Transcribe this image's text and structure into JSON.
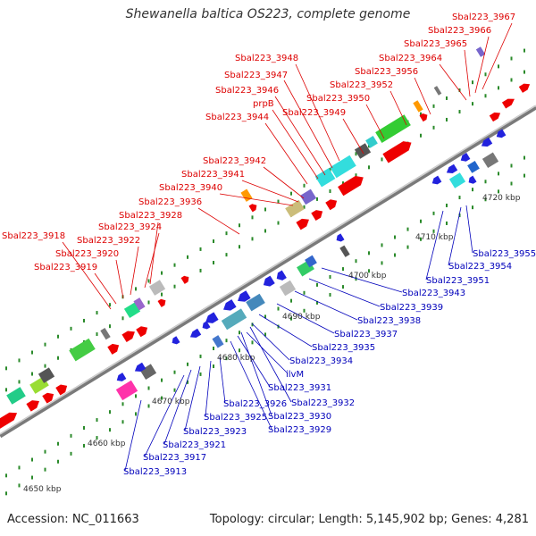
{
  "title": "Shewanella baltica OS223, complete genome",
  "footer": {
    "accession": "Accession: NC_011663",
    "topology": "Topology: circular; Length: 5,145,902 bp; Genes: 4,281"
  },
  "colors": {
    "top_label": "#dd0000",
    "bottom_label": "#0000bb",
    "backbone": "#888888",
    "tick": "#2a8a2a"
  },
  "scale_ticks": [
    "4650 kbp",
    "4660 kbp",
    "4670 kbp",
    "4680 kbp",
    "4690 kbp",
    "4700 kbp",
    "4710 kbp",
    "4720 kbp"
  ],
  "top_labels": [
    "Sbal223_3967",
    "Sbal223_3966",
    "Sbal223_3965",
    "Sbal223_3964",
    "Sbal223_3956",
    "Sbal223_3952",
    "Sbal223_3950",
    "Sbal223_3949",
    "Sbal223_3948",
    "Sbal223_3947",
    "Sbal223_3946",
    "prpB",
    "Sbal223_3944",
    "Sbal223_3942",
    "Sbal223_3941",
    "Sbal223_3940",
    "Sbal223_3936",
    "Sbal223_3928",
    "Sbal223_3924",
    "Sbal223_3922",
    "Sbal223_3920",
    "Sbal223_3918",
    "Sbal223_3919"
  ],
  "bottom_labels": [
    "Sbal223_3955",
    "Sbal223_3954",
    "Sbal223_3951",
    "Sbal223_3943",
    "Sbal223_3939",
    "Sbal223_3938",
    "Sbal223_3937",
    "Sbal223_3935",
    "Sbal223_3934",
    "ilvM",
    "Sbal223_3931",
    "Sbal223_3932",
    "Sbal223_3930",
    "Sbal223_3929",
    "Sbal223_3926",
    "Sbal223_3925",
    "Sbal223_3923",
    "Sbal223_3921",
    "Sbal223_3917",
    "Sbal223_3913"
  ]
}
